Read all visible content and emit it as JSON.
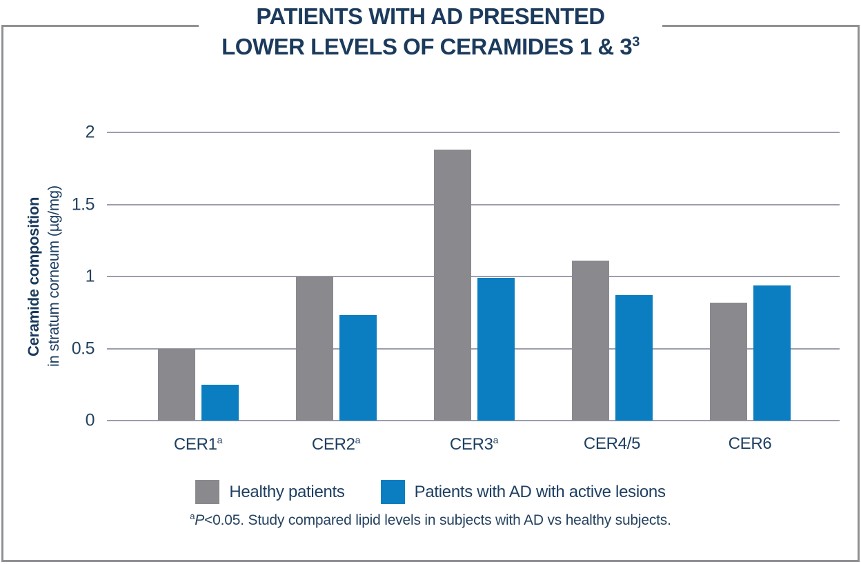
{
  "title": {
    "line1": "PATIENTS WITH AD PRESENTED",
    "line2": "LOWER LEVELS OF CERAMIDES 1 & 3",
    "reference_superscript": "3"
  },
  "colors": {
    "navy_text": "#1b3a5c",
    "gray_bar": "#8a8a8e",
    "blue_bar": "#0a7ec1",
    "gridline": "#9b9dae",
    "frame_border": "#8e9093",
    "background": "#ffffff"
  },
  "footnote": {
    "marker": "a",
    "p_italic": "P",
    "text": "<0.05. Study compared lipid levels in subjects with AD vs healthy subjects."
  },
  "chart_data": {
    "type": "bar",
    "categories": [
      {
        "name": "CER1",
        "marker": "a"
      },
      {
        "name": "CER2",
        "marker": "a"
      },
      {
        "name": "CER3",
        "marker": "a"
      },
      {
        "name": "CER4/5",
        "marker": ""
      },
      {
        "name": "CER6",
        "marker": ""
      }
    ],
    "series": [
      {
        "name": "Healthy patients",
        "color": "#8a8a8e",
        "values": [
          0.5,
          1.0,
          1.88,
          1.11,
          0.82
        ]
      },
      {
        "name": "Patients with AD with active lesions",
        "color": "#0a7ec1",
        "values": [
          0.25,
          0.73,
          0.99,
          0.87,
          0.94
        ]
      }
    ],
    "ylabel_bold": "Ceramide composition",
    "ylabel_regular": "in stratum corneum (µg/mg)",
    "y_ticks": [
      0,
      0.5,
      1,
      1.5,
      2
    ],
    "ylim": [
      0,
      2
    ],
    "grid": true,
    "legend_position": "bottom"
  }
}
